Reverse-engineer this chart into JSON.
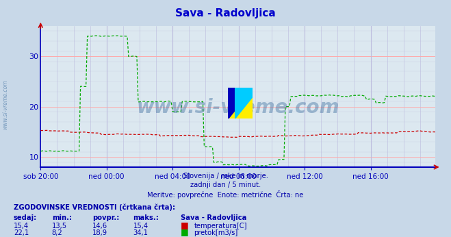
{
  "title": "Sava - Radovljica",
  "title_color": "#0000cc",
  "bg_color": "#c8d8e8",
  "plot_bg_color": "#dce8f0",
  "grid_color_h": "#ffaaaa",
  "grid_color_v": "#bbbbdd",
  "axis_color": "#0000bb",
  "ylim": [
    8,
    36
  ],
  "yticks": [
    10,
    20,
    30
  ],
  "xtick_labels": [
    "sob 20:00",
    "ned 00:00",
    "ned 04:00",
    "ned 08:00",
    "ned 12:00",
    "ned 16:00"
  ],
  "watermark_text": "www.si-vreme.com",
  "watermark_color": "#336699",
  "watermark_alpha": 0.4,
  "side_text": "www.si-vreme.com",
  "subtitle_lines": [
    "Slovenija / reke in morje.",
    "zadnji dan / 5 minut.",
    "Meritve: povprečne  Enote: metrične  Črta: ne"
  ],
  "subtitle_color": "#0000aa",
  "legend_title": "ZGODOVINSKE VREDNOSTI (črtkana črta):",
  "legend_headers": [
    "sedaj:",
    "min.:",
    "povpr.:",
    "maks.:",
    "Sava - Radovljica"
  ],
  "legend_row1": [
    "15,4",
    "13,5",
    "14,6",
    "15,4",
    "temperatura[C]"
  ],
  "legend_row2": [
    "22,1",
    "8,2",
    "18,9",
    "34,1",
    "pretok[m3/s]"
  ],
  "legend_color": "#0000aa",
  "temp_color": "#cc0000",
  "flow_color": "#00aa00",
  "n_points": 288
}
